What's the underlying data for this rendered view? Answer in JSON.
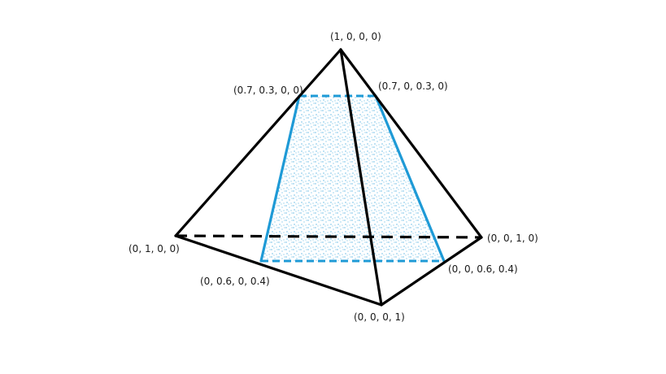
{
  "colors": {
    "edge": "#000000",
    "section": "#1e9ad6",
    "background": "#ffffff"
  },
  "vertices": {
    "apex": {
      "label": "(1, 0, 0, 0)"
    },
    "left": {
      "label": "(0, 1, 0, 0)"
    },
    "right": {
      "label": "(0, 0, 1, 0)"
    },
    "front": {
      "label": "(0, 0, 0, 1)"
    }
  },
  "section_points": {
    "top_left": {
      "label": "(0.7, 0.3, 0, 0)"
    },
    "top_right": {
      "label": "(0.7, 0, 0.3, 0)"
    },
    "bottom_left": {
      "label": "(0, 0.6, 0, 0.4)"
    },
    "bottom_right": {
      "label": "(0, 0, 0.6, 0.4)"
    }
  }
}
